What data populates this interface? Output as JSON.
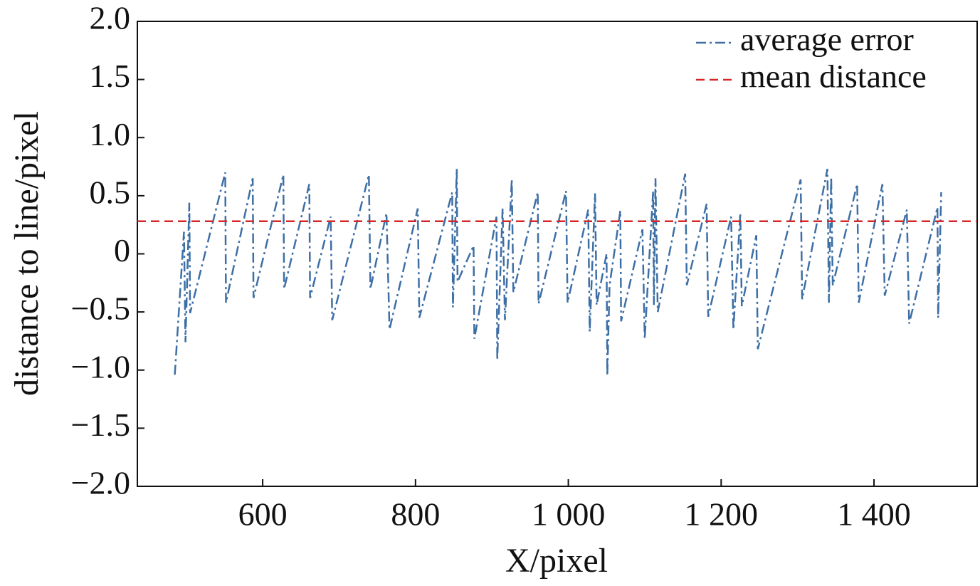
{
  "chart_data": {
    "type": "line",
    "x_label": "X/pixel",
    "y_label": "distance to line/pixel",
    "xlim": [
      436,
      1535
    ],
    "ylim": [
      -2,
      2
    ],
    "xticks": [
      600,
      800,
      {
        "value": 1000,
        "label": "1 000"
      },
      {
        "value": 1200,
        "label": "1 200"
      },
      {
        "value": 1400,
        "label": "1 400"
      }
    ],
    "yticks": [
      {
        "value": -2,
        "label": "−2.0"
      },
      {
        "value": -1.5,
        "label": "−1.5"
      },
      {
        "value": -1,
        "label": "−1.0"
      },
      {
        "value": -0.5,
        "label": "−0.5"
      },
      0,
      0.5,
      {
        "value": 1,
        "label": "1.0"
      },
      1.5,
      {
        "value": 2,
        "label": "2.0"
      }
    ],
    "legend": "upper right",
    "series": [
      {
        "name": "average error",
        "color": "#3d6fa5",
        "style": "dashdot",
        "x": [
          485,
          497,
          499,
          504,
          505,
          551,
          552,
          587,
          588,
          627,
          628,
          661,
          662,
          689,
          691,
          739,
          741,
          762,
          766,
          803,
          805,
          848,
          849,
          854,
          855,
          876,
          877,
          906,
          907,
          914,
          917,
          926,
          928,
          960,
          961,
          997,
          999,
          1026,
          1028,
          1035,
          1037,
          1050,
          1051,
          1054,
          1068,
          1069,
          1097,
          1100,
          1111,
          1112,
          1114,
          1117,
          1153,
          1155,
          1181,
          1183,
          1213,
          1216,
          1225,
          1227,
          1246,
          1248,
          1304,
          1306,
          1339,
          1341,
          1344,
          1346,
          1378,
          1380,
          1411,
          1414,
          1443,
          1446,
          1483,
          1484,
          1488
        ],
        "values": [
          -1.04,
          0.19,
          -0.76,
          0.44,
          -0.51,
          0.7,
          -0.42,
          0.65,
          -0.38,
          0.68,
          -0.3,
          0.6,
          -0.38,
          0.32,
          -0.57,
          0.68,
          -0.3,
          0.35,
          -0.65,
          0.39,
          -0.55,
          0.53,
          -0.46,
          0.73,
          -0.24,
          0.07,
          -0.73,
          0.32,
          -0.91,
          0.39,
          -0.57,
          0.64,
          -0.33,
          0.53,
          -0.43,
          0.54,
          -0.42,
          0.38,
          -0.67,
          0.52,
          -0.44,
          0,
          -1.05,
          -0.27,
          0.37,
          -0.58,
          0.21,
          -0.73,
          0.54,
          -0.44,
          0.65,
          -0.5,
          0.69,
          -0.27,
          0.43,
          -0.54,
          0.32,
          -0.65,
          0.35,
          -0.45,
          0.16,
          -0.82,
          0.64,
          -0.39,
          0.73,
          -0.42,
          0.66,
          -0.27,
          0.6,
          -0.42,
          0.6,
          -0.36,
          0.38,
          -0.6,
          0.4,
          -0.55,
          0.53
        ]
      },
      {
        "name": "mean distance",
        "color": "#d62728",
        "style": "dashed",
        "x": [
          436,
          1535
        ],
        "values": [
          0.28,
          0.28
        ]
      }
    ]
  }
}
